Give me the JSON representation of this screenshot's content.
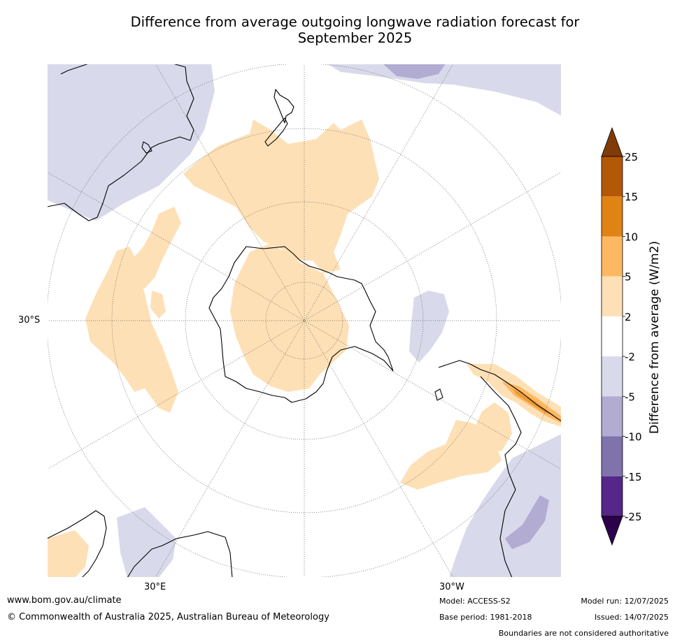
{
  "title": {
    "line1": "Difference from average outgoing longwave radiation forecast for",
    "line2": "September 2025"
  },
  "map": {
    "projection": "south polar stereographic",
    "labels": {
      "lat_30s": "30°S",
      "lon_30e": "30°E",
      "lon_30w": "30°W"
    },
    "colors": {
      "ocean_background": "#ffffff",
      "positive_2_5": "#fee0b6",
      "positive_5_10": "#fdb863",
      "positive_10_15": "#e08214",
      "positive_15_25": "#b35806",
      "positive_gt25": "#7f3b08",
      "negative_2_5": "#d8daeb",
      "negative_5_10": "#b2abd2",
      "negative_10_15": "#8073ac",
      "negative_15_25": "#542788",
      "negative_lt25": "#2d004b",
      "coastline": "#000000",
      "graticule": "#555555"
    }
  },
  "colorbar": {
    "title": "Difference from average (W/m2)",
    "ticks": [
      "25",
      "15",
      "10",
      "5",
      "2",
      "-2",
      "-5",
      "-10",
      "-15",
      "-25"
    ],
    "bands": [
      {
        "range": "15 to 25",
        "color": "#b35806"
      },
      {
        "range": "10 to 15",
        "color": "#e08214"
      },
      {
        "range": "5 to 10",
        "color": "#fdb863"
      },
      {
        "range": "2 to 5",
        "color": "#fee0b6"
      },
      {
        "range": "-2 to 2",
        "color": "#ffffff"
      },
      {
        "range": "-5 to -2",
        "color": "#d8daeb"
      },
      {
        "range": "-10 to -5",
        "color": "#b2abd2"
      },
      {
        "range": "-15 to -10",
        "color": "#8073ac"
      },
      {
        "range": "-25 to -15",
        "color": "#542788"
      }
    ],
    "top_arrow_color": "#7f3b08",
    "bottom_arrow_color": "#2d004b"
  },
  "footer": {
    "website": "www.bom.gov.au/climate",
    "copyright": "© Commonwealth of Australia 2025, Australian Bureau of Meteorology",
    "model": "Model: ACCESS-S2",
    "base_period": "Base period: 1981-2018",
    "model_run": "Model run: 12/07/2025",
    "issued": "Issued: 14/07/2025",
    "disclaimer": "Boundaries are not considered authoritative"
  }
}
